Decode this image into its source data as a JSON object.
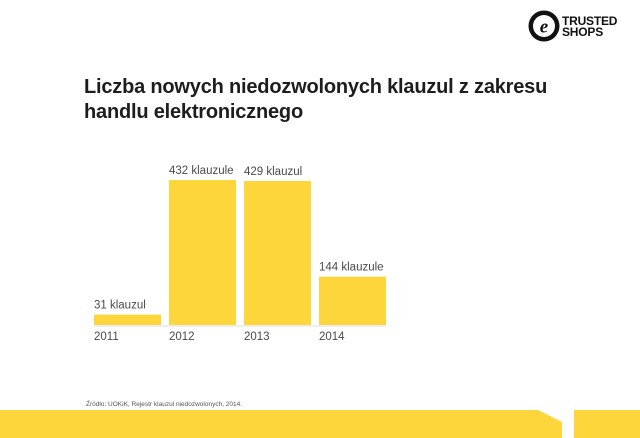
{
  "logo": {
    "icon": "trusted-shops-e-seal-icon",
    "line1": "TRUSTED",
    "line2": "SHOPS"
  },
  "title": "Liczba nowych niedozwolonych klauzul z zakresu handlu elektronicznego",
  "source": "Źródło: UOKiK, Rejestr klauzul niedozwolonych, 2014.",
  "colors": {
    "bar": "#fcd63b",
    "axis": "#dcdcdc",
    "footer": "#fcd63b",
    "text": "#1a1a1a",
    "label": "#4a4a4a"
  },
  "chart_data": {
    "type": "bar",
    "categories": [
      "2011",
      "2012",
      "2013",
      "2014"
    ],
    "values": [
      31,
      432,
      429,
      144
    ],
    "value_labels": [
      "31 klauzul",
      "432 klauzule",
      "429 klauzul",
      "144 klauzule"
    ],
    "title": "Liczba nowych niedozwolonych klauzul z zakresu handlu elektronicznego",
    "xlabel": "",
    "ylabel": "",
    "ylim": [
      0,
      432
    ],
    "grid": false,
    "legend": "none"
  }
}
